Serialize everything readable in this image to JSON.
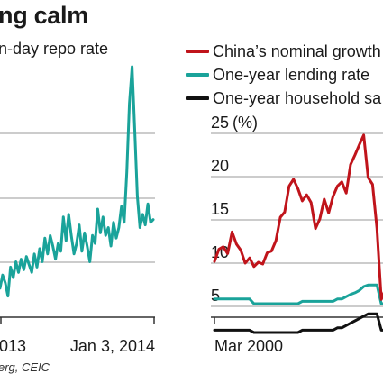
{
  "headline": "ng calm",
  "left_chart": {
    "title": "n-day repo rate",
    "x_labels": [
      "013",
      "Jan 3, 2014"
    ],
    "line_color": "#1aa39a"
  },
  "right_chart": {
    "y_unit": "(%)",
    "y_ticks": [
      "25",
      "20",
      "15",
      "10",
      "5"
    ],
    "x_labels": [
      "Mar 2000"
    ]
  },
  "legend": [
    {
      "label": "China’s nominal growth",
      "color": "#c0141b"
    },
    {
      "label": "One-year lending rate",
      "color": "#1aa39a"
    },
    {
      "label": "One-year household sa",
      "color": "#111111"
    }
  ],
  "source": "erg, CEIC",
  "chart_data": [
    {
      "type": "line",
      "title": "n-day repo rate",
      "xlabel": "",
      "ylabel": "",
      "x_tick_labels": [
        "013",
        "Jan 3, 2014"
      ],
      "series": [
        {
          "values": [
            2.6,
            3.1,
            2.8,
            2.3,
            3.4,
            3.0,
            3.6,
            3.2,
            3.7,
            3.3,
            3.8,
            3.5,
            3.2,
            3.9,
            3.4,
            4.1,
            3.6,
            4.5,
            3.9,
            4.6,
            4.2,
            3.7,
            4.3,
            4.0,
            5.3,
            4.4,
            5.4,
            4.6,
            3.9,
            4.3,
            5.0,
            4.0,
            4.7,
            4.2,
            3.6,
            4.6,
            4.3,
            5.6,
            4.7,
            5.3,
            4.6,
            4.9,
            4.2,
            5.1,
            4.5,
            4.9,
            5.7,
            5.1,
            7.0,
            9.6,
            11.0,
            8.6,
            6.1,
            4.9,
            5.4,
            5.0,
            5.8,
            5.1,
            5.2
          ]
        }
      ],
      "grid": true
    },
    {
      "type": "line",
      "title": "",
      "y_unit": "(%)",
      "x_tick_labels": [
        "Mar 2000"
      ],
      "ylim": [
        3,
        26
      ],
      "series": [
        {
          "name": "China’s nominal growth",
          "values": [
            10.2,
            11.6,
            11.9,
            11.1,
            13.6,
            12.2,
            11.5,
            10.0,
            10.6,
            9.6,
            10.1,
            9.9,
            11.2,
            11.4,
            12.6,
            15.3,
            15.9,
            18.9,
            19.7,
            18.6,
            17.2,
            17.9,
            17.0,
            14.0,
            15.1,
            17.4,
            15.8,
            17.7,
            18.9,
            19.4,
            18.1,
            21.4,
            22.5,
            23.7,
            24.8,
            19.9,
            19.1,
            14.0,
            5.8,
            7.1
          ]
        },
        {
          "name": "One-year lending rate",
          "values": [
            5.85,
            5.85,
            5.85,
            5.85,
            5.85,
            5.85,
            5.85,
            5.85,
            5.85,
            5.31,
            5.31,
            5.31,
            5.31,
            5.31,
            5.31,
            5.31,
            5.31,
            5.31,
            5.31,
            5.31,
            5.58,
            5.58,
            5.58,
            5.58,
            5.58,
            5.58,
            5.58,
            5.58,
            5.85,
            5.85,
            6.12,
            6.39,
            6.57,
            6.84,
            7.29,
            7.47,
            7.47,
            7.47,
            5.31,
            5.31
          ]
        },
        {
          "name": "One-year household sa",
          "values": [
            2.25,
            2.25,
            2.25,
            2.25,
            2.25,
            2.25,
            2.25,
            2.25,
            2.25,
            1.98,
            1.98,
            1.98,
            1.98,
            1.98,
            1.98,
            1.98,
            1.98,
            1.98,
            1.98,
            1.98,
            2.25,
            2.25,
            2.25,
            2.25,
            2.25,
            2.25,
            2.25,
            2.25,
            2.52,
            2.52,
            2.79,
            3.06,
            3.33,
            3.6,
            3.87,
            4.14,
            4.14,
            4.14,
            2.25,
            2.25
          ]
        }
      ],
      "grid": true
    }
  ]
}
